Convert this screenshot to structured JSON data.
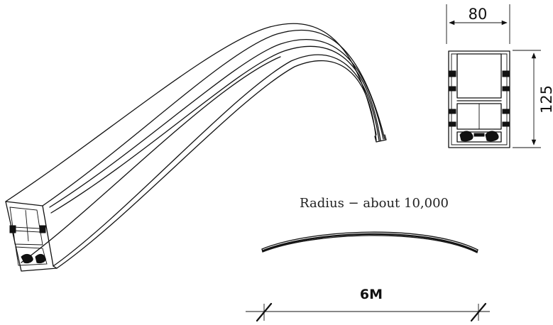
{
  "diagram": {
    "profile_width_label": "80",
    "profile_height_label": "125",
    "radius_label": "Radius − about 10,000",
    "length_label": "6M"
  }
}
